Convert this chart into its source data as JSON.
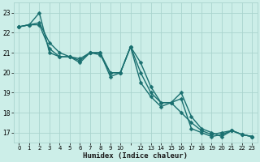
{
  "xlabel": "Humidex (Indice chaleur)",
  "background_color": "#cceee8",
  "grid_color": "#aad4ce",
  "line_color": "#1a7070",
  "series": [
    [
      22.3,
      22.4,
      23.0,
      21.0,
      20.8,
      20.8,
      20.5,
      21.0,
      21.0,
      19.8,
      20.0,
      21.3,
      20.5,
      19.3,
      18.5,
      18.5,
      19.0,
      17.8,
      17.2,
      17.0,
      16.8,
      17.1,
      16.9,
      16.8
    ],
    [
      22.3,
      22.4,
      22.5,
      21.5,
      21.0,
      20.8,
      20.7,
      21.0,
      21.0,
      20.0,
      20.0,
      21.3,
      19.5,
      18.8,
      18.3,
      18.5,
      18.0,
      17.5,
      17.1,
      16.9,
      17.0,
      17.1,
      16.9,
      16.8
    ],
    [
      22.3,
      22.4,
      22.4,
      21.2,
      20.8,
      20.8,
      20.6,
      21.0,
      20.9,
      20.0,
      20.0,
      21.3,
      20.0,
      19.0,
      18.5,
      18.5,
      18.7,
      17.2,
      17.0,
      16.8,
      16.9,
      17.1,
      16.9,
      16.8
    ]
  ],
  "x_values": [
    0,
    1,
    2,
    3,
    4,
    5,
    6,
    7,
    8,
    9,
    10,
    11,
    12,
    13,
    14,
    15,
    16,
    17,
    18,
    19,
    20,
    21,
    22,
    23
  ],
  "x_tick_labels": [
    "0",
    "1",
    "2",
    "3",
    "4",
    "5",
    "6",
    "7",
    "8",
    "9",
    "10",
    "",
    "12",
    "13",
    "14",
    "15",
    "16",
    "17",
    "18",
    "19",
    "20",
    "21",
    "22",
    "23"
  ],
  "ylim": [
    16.5,
    23.5
  ],
  "yticks": [
    17,
    18,
    19,
    20,
    21,
    22,
    23
  ],
  "markersize": 2.5,
  "linewidth": 1.0
}
